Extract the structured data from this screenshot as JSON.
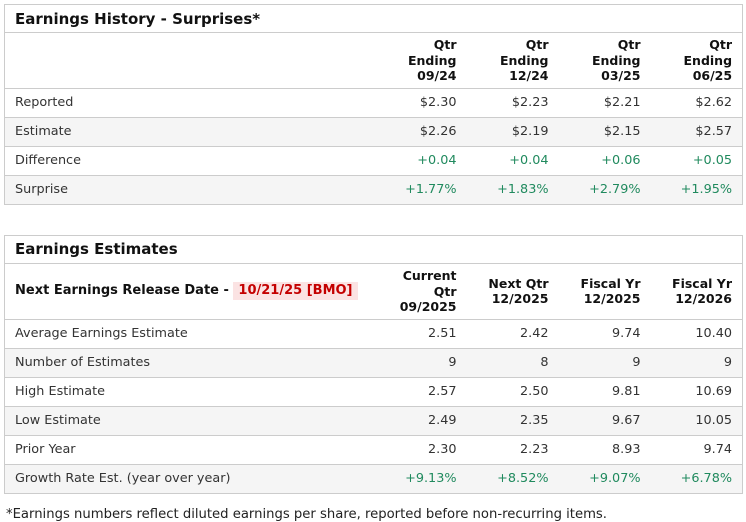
{
  "colors": {
    "positive_green": "#208a5e",
    "alert_red": "#c40000",
    "alert_red_background": "#fbe3e3",
    "table_border": "#cccccc",
    "alt_row_background": "#f5f5f5"
  },
  "surprises_table": {
    "title": "Earnings History - Surprises*",
    "col_headers": [
      {
        "line1": "Qtr Ending",
        "line2": "09/24"
      },
      {
        "line1": "Qtr Ending",
        "line2": "12/24"
      },
      {
        "line1": "Qtr Ending",
        "line2": "03/25"
      },
      {
        "line1": "Qtr Ending",
        "line2": "06/25"
      }
    ],
    "rows": [
      {
        "label": "Reported",
        "values": [
          "$2.30",
          "$2.23",
          "$2.21",
          "$2.62"
        ]
      },
      {
        "label": "Estimate",
        "values": [
          "$2.26",
          "$2.19",
          "$2.15",
          "$2.57"
        ]
      },
      {
        "label": "Difference",
        "values": [
          "+0.04",
          "+0.04",
          "+0.06",
          "+0.05"
        ]
      },
      {
        "label": "Surprise",
        "values": [
          "+1.77%",
          "+1.83%",
          "+2.79%",
          "+1.95%"
        ]
      }
    ]
  },
  "estimates_table": {
    "title": "Earnings Estimates",
    "release_label": "Next Earnings Release Date - ",
    "release_date": "10/21/25 [BMO]",
    "col_headers": [
      {
        "line1": "Current Qtr",
        "line2": "09/2025"
      },
      {
        "line1": "Next Qtr",
        "line2": "12/2025"
      },
      {
        "line1": "Fiscal Yr",
        "line2": "12/2025"
      },
      {
        "line1": "Fiscal Yr",
        "line2": "12/2026"
      }
    ],
    "rows": [
      {
        "label": "Average Earnings Estimate",
        "values": [
          "2.51",
          "2.42",
          "9.74",
          "10.40"
        ]
      },
      {
        "label": "Number of Estimates",
        "values": [
          "9",
          "8",
          "9",
          "9"
        ]
      },
      {
        "label": "High Estimate",
        "values": [
          "2.57",
          "2.50",
          "9.81",
          "10.69"
        ]
      },
      {
        "label": "Low Estimate",
        "values": [
          "2.49",
          "2.35",
          "9.67",
          "10.05"
        ]
      },
      {
        "label": "Prior Year",
        "values": [
          "2.30",
          "2.23",
          "8.93",
          "9.74"
        ]
      },
      {
        "label": "Growth Rate Est. (year over year)",
        "values": [
          "+9.13%",
          "+8.52%",
          "+9.07%",
          "+6.78%"
        ]
      }
    ]
  },
  "footnote": "*Earnings numbers reflect diluted earnings per share, reported before non-recurring items."
}
